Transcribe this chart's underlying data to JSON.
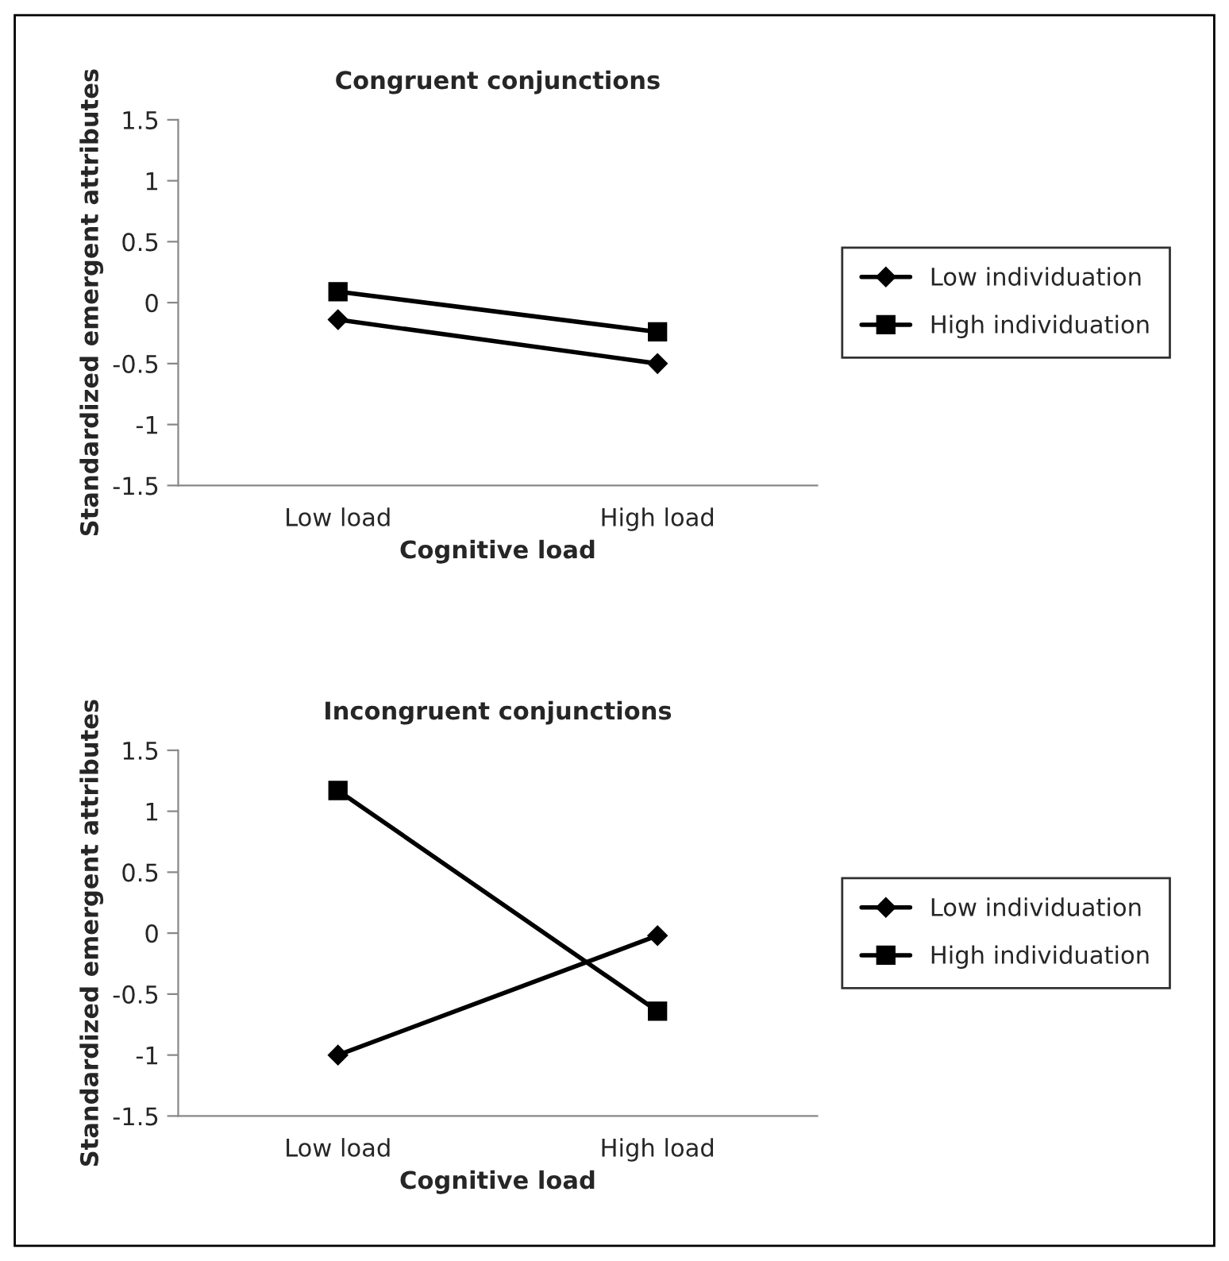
{
  "chart_data": [
    {
      "type": "line",
      "title": "Congruent conjunctions",
      "xlabel": "Cognitive load",
      "ylabel": "Standardized emergent attributes",
      "categories": [
        "Low load",
        "High load"
      ],
      "series": [
        {
          "name": "Low individuation",
          "color": "#000000",
          "values": [
            -0.14,
            -0.5
          ],
          "marker": "diamond"
        },
        {
          "name": "High individuation",
          "color": "#000000",
          "values": [
            0.09,
            -0.24
          ],
          "marker": "square"
        }
      ],
      "ylim": [
        -1.5,
        1.5
      ],
      "yticks": [
        {
          "value": -1.5,
          "label": "-1.5"
        },
        {
          "value": -1,
          "label": "-1"
        },
        {
          "value": -0.5,
          "label": "-0.5"
        },
        0,
        0.5,
        1,
        1.5
      ],
      "grid": false,
      "legend": "right"
    },
    {
      "type": "line",
      "title": "Incongruent conjunctions",
      "xlabel": "Cognitive load",
      "ylabel": "Standardized emergent attributes",
      "categories": [
        "Low load",
        "High load"
      ],
      "series": [
        {
          "name": "Low individuation",
          "color": "#000000",
          "values": [
            -1.0,
            -0.02
          ],
          "marker": "diamond"
        },
        {
          "name": "High individuation",
          "color": "#000000",
          "values": [
            1.17,
            -0.64
          ],
          "marker": "square"
        }
      ],
      "ylim": [
        -1.5,
        1.5
      ],
      "yticks": [
        {
          "value": -1.5,
          "label": "-1.5"
        },
        {
          "value": -1,
          "label": "-1"
        },
        {
          "value": -0.5,
          "label": "-0.5"
        },
        0,
        0.5,
        1,
        1.5
      ],
      "grid": false,
      "legend": "right"
    }
  ]
}
